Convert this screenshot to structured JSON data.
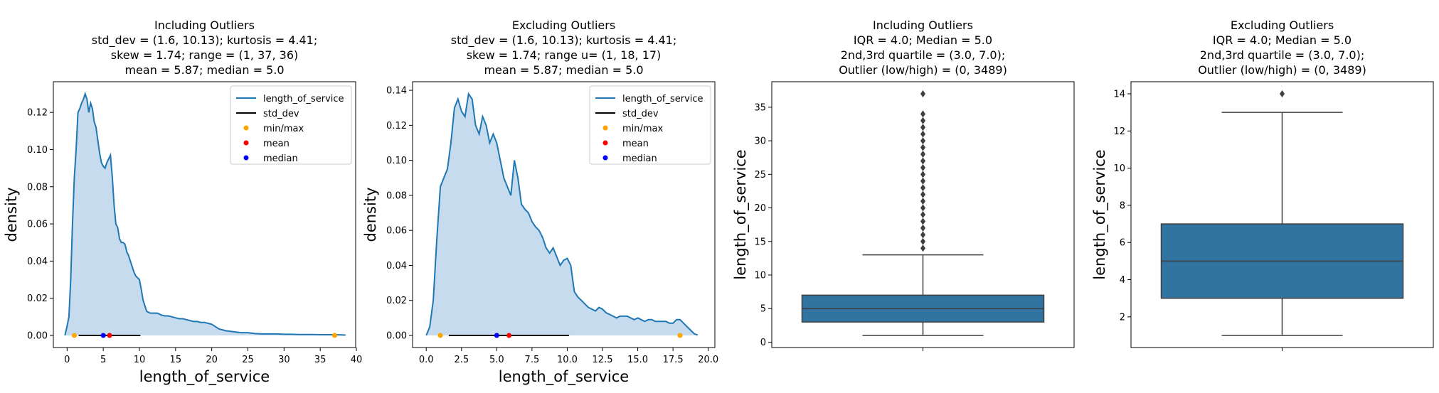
{
  "chart_data": [
    {
      "type": "area",
      "title_lines": [
        "Including Outliers",
        "std_dev = (1.6, 10.13); kurtosis = 4.41;",
        "skew = 1.74; range = (1, 37, 36)",
        "mean = 5.87; median = 5.0"
      ],
      "xlabel": "length_of_service",
      "ylabel": "density",
      "xlim": [
        -1.9,
        39.9
      ],
      "ylim": [
        -0.0065,
        0.1365
      ],
      "xticks": [
        0,
        5,
        10,
        15,
        20,
        25,
        30,
        35,
        40
      ],
      "xtick_labels": [
        "0",
        "5",
        "10",
        "15",
        "20",
        "25",
        "30",
        "35",
        "40"
      ],
      "yticks": [
        0.0,
        0.02,
        0.04,
        0.06,
        0.08,
        0.1,
        0.12
      ],
      "ytick_labels": [
        "0.00",
        "0.02",
        "0.04",
        "0.06",
        "0.08",
        "0.10",
        "0.12"
      ],
      "series": [
        {
          "name": "length_of_service",
          "color": "#1f77b4",
          "x": [
            -0.3,
            0,
            0.25,
            0.5,
            0.75,
            1,
            1.25,
            1.5,
            1.75,
            2,
            2.25,
            2.5,
            2.75,
            3,
            3.25,
            3.5,
            3.75,
            4,
            4.25,
            4.5,
            4.75,
            5,
            5.25,
            5.5,
            5.75,
            6,
            6.25,
            6.5,
            6.75,
            7,
            7.25,
            7.5,
            7.75,
            8,
            8.25,
            8.5,
            8.75,
            9,
            9.25,
            9.5,
            9.75,
            10,
            10.25,
            10.5,
            11,
            11.5,
            12,
            12.5,
            13,
            13.5,
            14,
            14.5,
            15,
            15.5,
            16,
            16.5,
            17,
            17.5,
            18,
            18.5,
            19,
            19.5,
            20,
            21,
            22,
            23,
            24,
            25,
            26,
            27,
            28,
            29,
            30,
            31,
            32,
            33,
            34,
            35,
            36,
            37,
            38,
            38.5
          ],
          "y": [
            0.0,
            0.005,
            0.01,
            0.03,
            0.06,
            0.085,
            0.1,
            0.12,
            0.122,
            0.125,
            0.127,
            0.13,
            0.127,
            0.12,
            0.125,
            0.122,
            0.115,
            0.112,
            0.105,
            0.098,
            0.093,
            0.091,
            0.09,
            0.093,
            0.095,
            0.097,
            0.085,
            0.07,
            0.06,
            0.058,
            0.052,
            0.05,
            0.05,
            0.049,
            0.045,
            0.043,
            0.04,
            0.037,
            0.034,
            0.032,
            0.031,
            0.03,
            0.025,
            0.019,
            0.013,
            0.012,
            0.012,
            0.012,
            0.011,
            0.0105,
            0.0105,
            0.01,
            0.0095,
            0.009,
            0.009,
            0.0085,
            0.008,
            0.0075,
            0.0075,
            0.007,
            0.007,
            0.0065,
            0.006,
            0.0035,
            0.0025,
            0.002,
            0.0015,
            0.0015,
            0.001,
            0.0008,
            0.0008,
            0.0008,
            0.0006,
            0.0006,
            0.0005,
            0.0005,
            0.0005,
            0.0004,
            0.0004,
            0.0004,
            0.0003,
            0.0002
          ]
        },
        {
          "name": "std_dev",
          "color": "#000000",
          "x": [
            1.6,
            10.13
          ],
          "y": [
            0,
            0
          ]
        },
        {
          "name": "min/max",
          "color": "#ffa500",
          "x": [
            1,
            37
          ],
          "y": [
            0,
            0
          ]
        },
        {
          "name": "mean",
          "color": "#ff0000",
          "x": [
            5.87
          ],
          "y": [
            0
          ]
        },
        {
          "name": "median",
          "color": "#0000ff",
          "x": [
            5.0
          ],
          "y": [
            0
          ]
        }
      ],
      "legend": "top-right"
    },
    {
      "type": "area",
      "title_lines": [
        "Excluding Outliers",
        "std_dev = (1.6, 10.13); kurtosis = 4.41;",
        "skew = 1.74; range u= (1, 18, 17)",
        "mean = 5.87; median = 5.0"
      ],
      "xlabel": "length_of_service",
      "ylabel": "density",
      "xlim": [
        -0.97,
        20.47
      ],
      "ylim": [
        -0.0069,
        0.1449
      ],
      "xticks": [
        0.0,
        2.5,
        5.0,
        7.5,
        10.0,
        12.5,
        15.0,
        17.5,
        20.0
      ],
      "xtick_labels": [
        "0.0",
        "2.5",
        "5.0",
        "7.5",
        "10.0",
        "12.5",
        "15.0",
        "17.5",
        "20.0"
      ],
      "yticks": [
        0.0,
        0.02,
        0.04,
        0.06,
        0.08,
        0.1,
        0.12,
        0.14
      ],
      "ytick_labels": [
        "0.00",
        "0.02",
        "0.04",
        "0.06",
        "0.08",
        "0.10",
        "0.12",
        "0.14"
      ],
      "series": [
        {
          "name": "length_of_service",
          "color": "#1f77b4",
          "x": [
            0,
            0.25,
            0.5,
            0.75,
            1,
            1.25,
            1.5,
            1.75,
            2,
            2.25,
            2.5,
            2.75,
            3,
            3.25,
            3.5,
            3.75,
            4,
            4.25,
            4.5,
            4.75,
            5,
            5.25,
            5.5,
            5.75,
            6,
            6.25,
            6.5,
            6.75,
            7,
            7.25,
            7.5,
            7.75,
            8,
            8.25,
            8.5,
            8.75,
            9,
            9.25,
            9.5,
            9.75,
            10,
            10.25,
            10.5,
            10.75,
            11,
            11.25,
            11.5,
            11.75,
            12,
            12.25,
            12.5,
            12.75,
            13,
            13.25,
            13.5,
            13.75,
            14,
            14.25,
            14.5,
            14.75,
            15,
            15.25,
            15.5,
            15.75,
            16,
            16.25,
            16.5,
            16.75,
            17,
            17.25,
            17.5,
            17.75,
            18,
            18.25,
            18.5,
            18.75,
            19,
            19.25
          ],
          "y": [
            0.0,
            0.005,
            0.02,
            0.055,
            0.085,
            0.09,
            0.095,
            0.11,
            0.13,
            0.135,
            0.128,
            0.125,
            0.138,
            0.135,
            0.12,
            0.115,
            0.125,
            0.12,
            0.11,
            0.115,
            0.11,
            0.1,
            0.09,
            0.085,
            0.08,
            0.1,
            0.09,
            0.075,
            0.072,
            0.07,
            0.065,
            0.062,
            0.06,
            0.056,
            0.05,
            0.047,
            0.05,
            0.045,
            0.04,
            0.043,
            0.044,
            0.04,
            0.025,
            0.022,
            0.02,
            0.018,
            0.016,
            0.015,
            0.014,
            0.016,
            0.015,
            0.013,
            0.012,
            0.011,
            0.01,
            0.011,
            0.011,
            0.011,
            0.01,
            0.009,
            0.01,
            0.009,
            0.008,
            0.009,
            0.009,
            0.008,
            0.008,
            0.008,
            0.008,
            0.007,
            0.007,
            0.009,
            0.009,
            0.007,
            0.005,
            0.003,
            0.001,
            0.0002
          ]
        },
        {
          "name": "std_dev",
          "color": "#000000",
          "x": [
            1.6,
            10.13
          ],
          "y": [
            0,
            0
          ]
        },
        {
          "name": "min/max",
          "color": "#ffa500",
          "x": [
            1,
            18
          ],
          "y": [
            0,
            0
          ]
        },
        {
          "name": "mean",
          "color": "#ff0000",
          "x": [
            5.87
          ],
          "y": [
            0
          ]
        },
        {
          "name": "median",
          "color": "#0000ff",
          "x": [
            5.0
          ],
          "y": [
            0
          ]
        }
      ],
      "legend": "top-right"
    },
    {
      "type": "box",
      "title_lines": [
        "Including Outliers",
        "IQR = 4.0; Median = 5.0",
        "2nd,3rd  quartile = (3.0, 7.0);",
        "Outlier (low/high) = (0, 3489)"
      ],
      "xlabel": "",
      "ylabel": "length_of_service",
      "ylim": [
        -0.8,
        38.8
      ],
      "yticks": [
        0,
        5,
        10,
        15,
        20,
        25,
        30,
        35
      ],
      "ytick_labels": [
        "0",
        "5",
        "10",
        "15",
        "20",
        "25",
        "30",
        "35"
      ],
      "box": {
        "whisker_low": 1,
        "q1": 3,
        "median": 5,
        "q3": 7,
        "whisker_high": 13,
        "color": "#3274a1"
      },
      "outliers": [
        14,
        15,
        16,
        17,
        18,
        19,
        20,
        21,
        22,
        23,
        24,
        25,
        26,
        27,
        28,
        29,
        30,
        31,
        32,
        33,
        34,
        37
      ]
    },
    {
      "type": "box",
      "title_lines": [
        "Excluding Outliers",
        "IQR = 4.0; Median = 5.0",
        "2nd,3rd  quartile = (3.0, 7.0);",
        "Outlier (low/high) = (0, 3489)"
      ],
      "xlabel": "",
      "ylabel": "length_of_service",
      "ylim": [
        0.35,
        14.65
      ],
      "yticks": [
        2,
        4,
        6,
        8,
        10,
        12,
        14
      ],
      "ytick_labels": [
        "2",
        "4",
        "6",
        "8",
        "10",
        "12",
        "14"
      ],
      "box": {
        "whisker_low": 1,
        "q1": 3,
        "median": 5,
        "q3": 7,
        "whisker_high": 13,
        "color": "#3274a1"
      },
      "outliers": [
        14
      ]
    }
  ]
}
